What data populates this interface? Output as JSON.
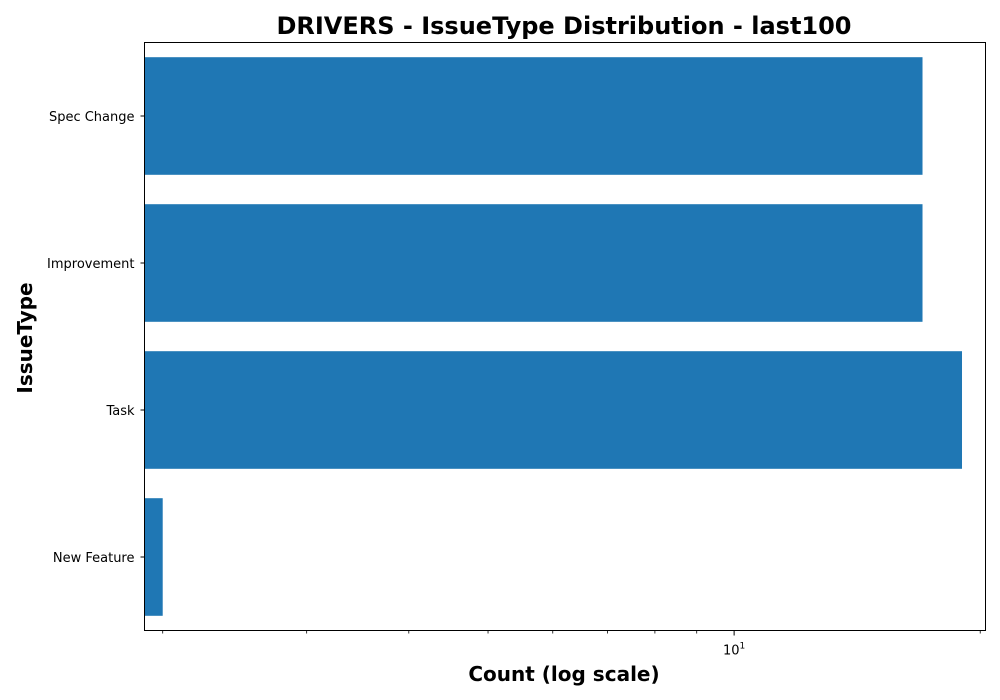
{
  "chart_data": {
    "type": "bar",
    "orientation": "horizontal",
    "title": "DRIVERS - IssueType Distribution - last100",
    "xlabel": "Count (log scale)",
    "ylabel": "IssueType",
    "x_scale": "log",
    "xlim": [
      1.9,
      20.3
    ],
    "major_tick": {
      "base": "10",
      "exponent": "1",
      "value": 10
    },
    "minor_ticks": [
      2,
      3,
      4,
      5,
      6,
      7,
      8,
      9,
      20
    ],
    "categories": [
      "New Feature",
      "Task",
      "Improvement",
      "Spec Change"
    ],
    "values": [
      2,
      19,
      17,
      17
    ],
    "bar_color": "#1f77b4",
    "grid": false,
    "legend": null
  }
}
